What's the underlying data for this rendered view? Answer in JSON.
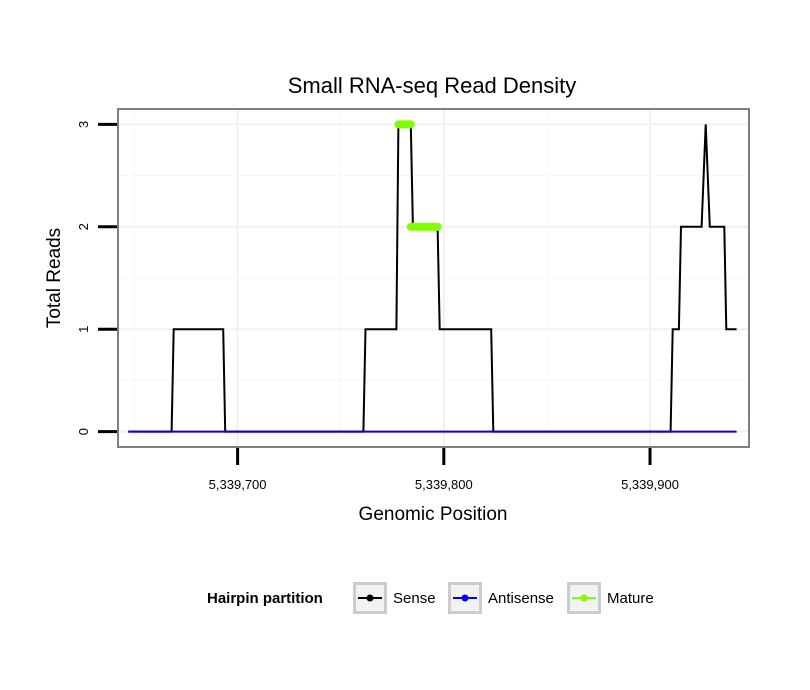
{
  "chart_data": {
    "type": "line",
    "title": "Small RNA-seq Read Density",
    "xlabel": "Genomic Position",
    "ylabel": "Total Reads",
    "xlim": [
      5339642,
      5339948
    ],
    "ylim": [
      -0.15,
      3.15
    ],
    "x_ticks": [
      5339700,
      5339800,
      5339900
    ],
    "x_tick_labels": [
      "5,339,700",
      "5,339,800",
      "5,339,900"
    ],
    "y_ticks": [
      0,
      1,
      2,
      3
    ],
    "y_tick_labels": [
      "0",
      "1",
      "2",
      "3"
    ],
    "grid": true,
    "legend": {
      "title": "Hairpin partition",
      "position": "bottom",
      "entries": [
        {
          "label": "Sense",
          "color": "#000000"
        },
        {
          "label": "Antisense",
          "color": "#0000ff"
        },
        {
          "label": "Mature",
          "color": "#7fff00"
        }
      ]
    },
    "series": [
      {
        "name": "Sense",
        "color": "#000000",
        "points": [
          [
            5339647,
            0
          ],
          [
            5339668,
            0
          ],
          [
            5339669,
            1
          ],
          [
            5339693,
            1
          ],
          [
            5339694,
            0
          ],
          [
            5339761,
            0
          ],
          [
            5339762,
            1
          ],
          [
            5339777,
            1
          ],
          [
            5339778,
            3
          ],
          [
            5339784,
            3
          ],
          [
            5339785,
            2
          ],
          [
            5339797,
            2
          ],
          [
            5339798,
            1
          ],
          [
            5339823,
            1
          ],
          [
            5339824,
            0
          ],
          [
            5339910,
            0
          ],
          [
            5339911,
            1
          ],
          [
            5339914,
            1
          ],
          [
            5339915,
            2
          ],
          [
            5339925,
            2
          ],
          [
            5339927,
            3
          ],
          [
            5339929,
            2
          ],
          [
            5339936,
            2
          ],
          [
            5339937,
            1
          ],
          [
            5339942,
            1
          ]
        ]
      },
      {
        "name": "Antisense",
        "color": "#0000ff",
        "points": [
          [
            5339647,
            0
          ],
          [
            5339942,
            0
          ]
        ]
      },
      {
        "name": "Mature",
        "color": "#7fff00",
        "segments": [
          {
            "x": [
              5339778,
              5339784
            ],
            "y": 3
          },
          {
            "x": [
              5339784,
              5339797
            ],
            "y": 2
          }
        ]
      }
    ]
  }
}
